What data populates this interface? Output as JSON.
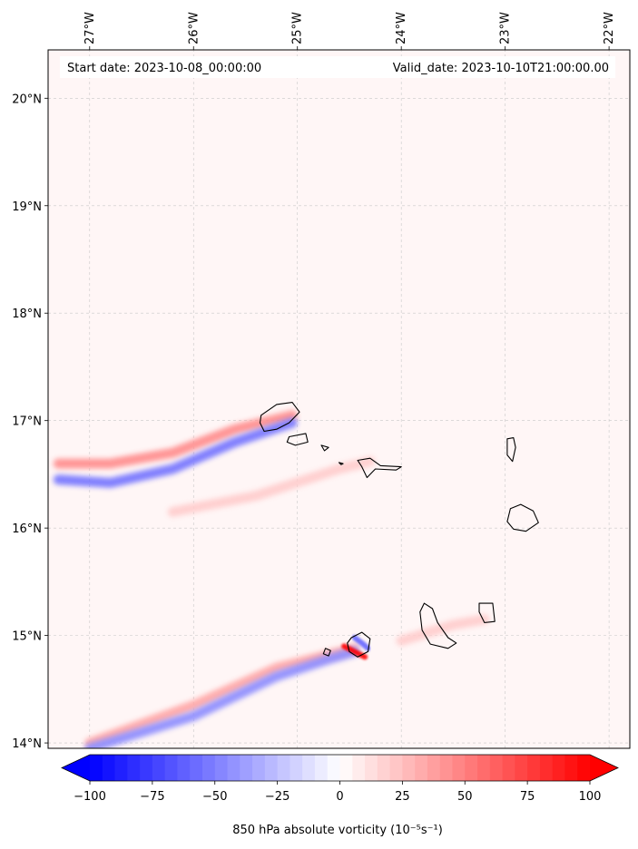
{
  "chart_data": {
    "type": "heatmap",
    "title": "",
    "start_label": "Start date: 2023-10-08_00:00:00",
    "valid_label": "Valid_date: 2023-10-10T21:00:00.00",
    "x_ticks": [
      {
        "value": -27,
        "label": "27°W"
      },
      {
        "value": -26,
        "label": "26°W"
      },
      {
        "value": -25,
        "label": "25°W"
      },
      {
        "value": -24,
        "label": "24°W"
      },
      {
        "value": -23,
        "label": "23°W"
      },
      {
        "value": -22,
        "label": "22°W"
      }
    ],
    "y_ticks": [
      {
        "value": 20,
        "label": "20°N"
      },
      {
        "value": 19,
        "label": "19°N"
      },
      {
        "value": 18,
        "label": "18°N"
      },
      {
        "value": 17,
        "label": "17°N"
      },
      {
        "value": 16,
        "label": "16°N"
      },
      {
        "value": 15,
        "label": "15°N"
      },
      {
        "value": 14,
        "label": "14°N"
      }
    ],
    "lon_range": [
      -27.4,
      -21.8
    ],
    "lat_range": [
      13.95,
      20.45
    ],
    "grid": true,
    "colorbar": {
      "min": -100,
      "max": 100,
      "levels": 40,
      "extend": "both",
      "colormap": "bwr",
      "colors": {
        "low": "#0000ff",
        "mid": "#ffffff",
        "high": "#ff0000"
      },
      "ticks": [
        {
          "value": -100,
          "label": "−100"
        },
        {
          "value": -75,
          "label": "−75"
        },
        {
          "value": -50,
          "label": "−50"
        },
        {
          "value": -25,
          "label": "−25"
        },
        {
          "value": 0,
          "label": "0"
        },
        {
          "value": 25,
          "label": "25"
        },
        {
          "value": 50,
          "label": "50"
        },
        {
          "value": 75,
          "label": "75"
        },
        {
          "value": 100,
          "label": "100"
        }
      ],
      "label": "850 hPa absolute vorticity (10⁻⁵s⁻¹)"
    },
    "background_vorticity": 3,
    "features": [
      {
        "name": "santo-antao-wake-positive",
        "points": [
          [
            -27.3,
            16.6
          ],
          [
            -26.8,
            16.6
          ],
          [
            -26.2,
            16.7
          ],
          [
            -25.6,
            16.92
          ],
          [
            -25.05,
            17.05
          ]
        ],
        "value": 45
      },
      {
        "name": "santo-antao-wake-negative",
        "points": [
          [
            -27.3,
            16.45
          ],
          [
            -26.8,
            16.42
          ],
          [
            -26.2,
            16.55
          ],
          [
            -25.6,
            16.8
          ],
          [
            -25.05,
            16.98
          ]
        ],
        "value": -55
      },
      {
        "name": "sao-nicolau-wake",
        "points": [
          [
            -26.2,
            16.15
          ],
          [
            -25.4,
            16.3
          ],
          [
            -24.6,
            16.55
          ],
          [
            -24.3,
            16.62
          ]
        ],
        "value": 20
      },
      {
        "name": "fogo-wake-positive",
        "points": [
          [
            -27.0,
            14.0
          ],
          [
            -26.0,
            14.35
          ],
          [
            -25.2,
            14.7
          ],
          [
            -24.7,
            14.82
          ],
          [
            -24.45,
            14.88
          ]
        ],
        "value": 35
      },
      {
        "name": "fogo-wake-negative",
        "points": [
          [
            -27.0,
            13.95
          ],
          [
            -26.0,
            14.25
          ],
          [
            -25.2,
            14.62
          ],
          [
            -24.7,
            14.78
          ],
          [
            -24.45,
            14.85
          ]
        ],
        "value": -45
      },
      {
        "name": "fogo-core-positive",
        "points": [
          [
            -24.55,
            14.9
          ],
          [
            -24.45,
            14.85
          ],
          [
            -24.35,
            14.8
          ]
        ],
        "value": 100
      },
      {
        "name": "fogo-core-negative",
        "points": [
          [
            -24.45,
            14.98
          ],
          [
            -24.38,
            14.93
          ],
          [
            -24.32,
            14.88
          ]
        ],
        "value": -60
      },
      {
        "name": "santiago-wake",
        "points": [
          [
            -24.0,
            14.95
          ],
          [
            -23.5,
            15.1
          ],
          [
            -23.2,
            15.15
          ]
        ],
        "value": 20
      }
    ],
    "islands": [
      {
        "name": "Santo Antão",
        "outline": [
          [
            -25.35,
            17.05
          ],
          [
            -25.2,
            17.15
          ],
          [
            -25.05,
            17.17
          ],
          [
            -24.98,
            17.08
          ],
          [
            -25.08,
            16.98
          ],
          [
            -25.2,
            16.92
          ],
          [
            -25.32,
            16.9
          ],
          [
            -25.36,
            16.98
          ]
        ]
      },
      {
        "name": "São Vicente",
        "outline": [
          [
            -25.08,
            16.85
          ],
          [
            -24.92,
            16.88
          ],
          [
            -24.9,
            16.8
          ],
          [
            -25.02,
            16.77
          ],
          [
            -25.1,
            16.8
          ]
        ]
      },
      {
        "name": "Santa Luzia",
        "outline": [
          [
            -24.77,
            16.77
          ],
          [
            -24.7,
            16.75
          ],
          [
            -24.74,
            16.72
          ]
        ]
      },
      {
        "name": "Raso",
        "outline": [
          [
            -24.6,
            16.61
          ],
          [
            -24.56,
            16.6
          ],
          [
            -24.58,
            16.59
          ]
        ]
      },
      {
        "name": "São Nicolau",
        "outline": [
          [
            -24.42,
            16.63
          ],
          [
            -24.3,
            16.65
          ],
          [
            -24.2,
            16.58
          ],
          [
            -24.0,
            16.57
          ],
          [
            -24.05,
            16.54
          ],
          [
            -24.25,
            16.55
          ],
          [
            -24.33,
            16.47
          ],
          [
            -24.38,
            16.57
          ]
        ]
      },
      {
        "name": "Sal",
        "outline": [
          [
            -22.98,
            16.83
          ],
          [
            -22.92,
            16.84
          ],
          [
            -22.9,
            16.75
          ],
          [
            -22.93,
            16.62
          ],
          [
            -22.98,
            16.68
          ]
        ]
      },
      {
        "name": "Boa Vista",
        "outline": [
          [
            -22.95,
            16.18
          ],
          [
            -22.85,
            16.22
          ],
          [
            -22.73,
            16.16
          ],
          [
            -22.68,
            16.05
          ],
          [
            -22.8,
            15.97
          ],
          [
            -22.92,
            15.99
          ],
          [
            -22.98,
            16.06
          ]
        ]
      },
      {
        "name": "Maio",
        "outline": [
          [
            -23.25,
            15.3
          ],
          [
            -23.12,
            15.3
          ],
          [
            -23.1,
            15.13
          ],
          [
            -23.2,
            15.12
          ],
          [
            -23.25,
            15.22
          ]
        ]
      },
      {
        "name": "Santiago",
        "outline": [
          [
            -23.78,
            15.3
          ],
          [
            -23.7,
            15.25
          ],
          [
            -23.65,
            15.12
          ],
          [
            -23.55,
            14.98
          ],
          [
            -23.47,
            14.93
          ],
          [
            -23.55,
            14.88
          ],
          [
            -23.72,
            14.92
          ],
          [
            -23.8,
            15.05
          ],
          [
            -23.82,
            15.22
          ]
        ]
      },
      {
        "name": "Fogo",
        "outline": [
          [
            -24.48,
            14.98
          ],
          [
            -24.38,
            15.03
          ],
          [
            -24.3,
            14.97
          ],
          [
            -24.32,
            14.85
          ],
          [
            -24.42,
            14.8
          ],
          [
            -24.5,
            14.85
          ],
          [
            -24.52,
            14.93
          ]
        ]
      },
      {
        "name": "Brava",
        "outline": [
          [
            -24.73,
            14.88
          ],
          [
            -24.68,
            14.86
          ],
          [
            -24.7,
            14.81
          ],
          [
            -24.75,
            14.83
          ]
        ]
      }
    ]
  }
}
